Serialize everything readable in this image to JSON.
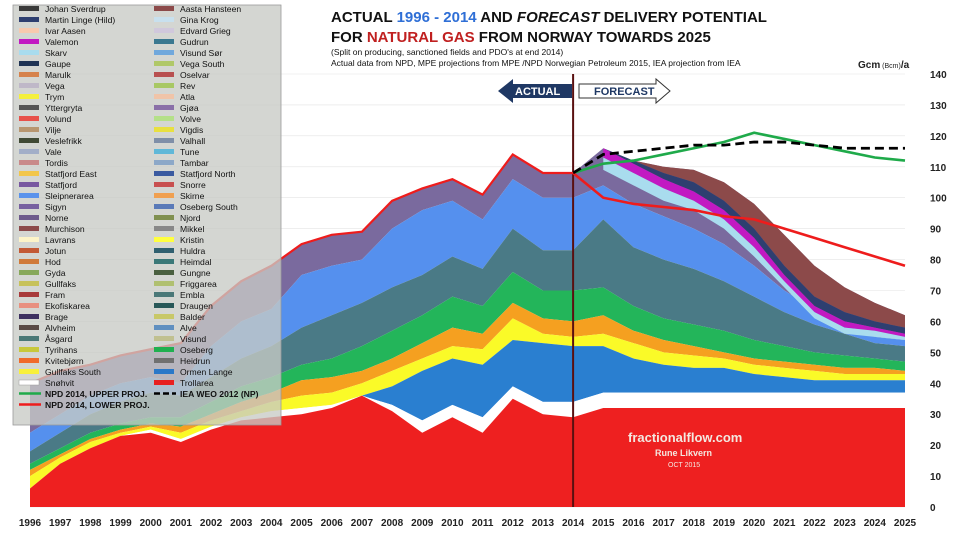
{
  "chart_data": {
    "type": "area",
    "title": {
      "pre1": "ACTUAL ",
      "years": "1996 - 2014",
      "mid1": " AND ",
      "forecast_word": "FORECAST",
      "post1": " DELIVERY POTENTIAL",
      "pre2": "FOR  ",
      "gas": "NATURAL GAS",
      "post2": " FROM NORWAY TOWARDS 2025"
    },
    "subtitle_lines": [
      "(Split on producing, sanctioned fields and PDO's at end 2014)",
      "Actual data from NPD, MPE projections from MPE /NPD Norwegian Petroleum 2015, IEA projection from IEA"
    ],
    "ylabel": {
      "main": "Gcm",
      "small": " (Bcm)",
      "tail": "/a"
    },
    "x": [
      1996,
      1997,
      1998,
      1999,
      2000,
      2001,
      2002,
      2003,
      2004,
      2005,
      2006,
      2007,
      2008,
      2009,
      2010,
      2011,
      2012,
      2013,
      2014,
      2015,
      2016,
      2017,
      2018,
      2019,
      2020,
      2021,
      2022,
      2023,
      2024,
      2025
    ],
    "ylim": [
      0,
      140
    ],
    "yticks": [
      0,
      10,
      20,
      30,
      40,
      50,
      60,
      70,
      80,
      90,
      100,
      110,
      120,
      130,
      140
    ],
    "total_deliveries": [
      40,
      44,
      46,
      49,
      51,
      53,
      65,
      73,
      78,
      85,
      88,
      89,
      99,
      103,
      106,
      101,
      114,
      108,
      108,
      116,
      112,
      110,
      109,
      105,
      98,
      88,
      78,
      71,
      66,
      62
    ],
    "stack_boundaries": {
      "trollarea_top": [
        6,
        14,
        19,
        23,
        24,
        21,
        25,
        28,
        29,
        30,
        32,
        36,
        31,
        24,
        29,
        24,
        35,
        30,
        29,
        32,
        32,
        32,
        32,
        32,
        32,
        32,
        32,
        32,
        32,
        32
      ],
      "white_top": [
        6,
        14,
        19,
        23,
        25,
        22,
        26,
        29,
        31,
        32,
        33,
        36,
        33,
        28,
        33,
        29,
        39,
        34,
        34,
        37,
        37,
        37,
        37,
        37,
        37,
        37,
        37,
        37,
        37,
        37
      ],
      "ormen_top": [
        6,
        14,
        19,
        23,
        25,
        22,
        26,
        29,
        31,
        32,
        33,
        36,
        39,
        44,
        48,
        46,
        54,
        53,
        52,
        52,
        48,
        46,
        45,
        45,
        43,
        42,
        41,
        41,
        41,
        41
      ],
      "yellow_top": [
        10,
        16,
        21,
        24,
        26,
        24,
        28,
        31,
        34,
        36,
        37,
        40,
        44,
        48,
        52,
        51,
        61,
        56,
        55,
        56,
        53,
        50,
        49,
        48,
        46,
        45,
        44,
        43,
        43,
        43
      ],
      "orange_top": [
        12,
        17,
        22,
        25,
        27,
        26,
        30,
        34,
        37,
        41,
        42,
        44,
        48,
        53,
        58,
        56,
        66,
        61,
        60,
        62,
        57,
        54,
        52,
        50,
        48,
        47,
        46,
        45,
        45,
        44
      ],
      "green_top": [
        14,
        19,
        24,
        27,
        29,
        29,
        34,
        39,
        42,
        46,
        48,
        52,
        57,
        62,
        68,
        65,
        76,
        70,
        70,
        71,
        65,
        61,
        59,
        57,
        54,
        52,
        50,
        49,
        48,
        47
      ],
      "teal_top": [
        18,
        24,
        30,
        34,
        37,
        36,
        42,
        48,
        52,
        58,
        62,
        66,
        71,
        75,
        81,
        77,
        90,
        83,
        83,
        93,
        84,
        80,
        77,
        73,
        68,
        63,
        59,
        56,
        53,
        52
      ],
      "blue_top": [
        24,
        30,
        36,
        40,
        42,
        40,
        52,
        60,
        64,
        75,
        78,
        80,
        90,
        96,
        99,
        93,
        106,
        100,
        100,
        104,
        98,
        94,
        90,
        85,
        78,
        70,
        64,
        59,
        55,
        54
      ]
    },
    "series": [
      {
        "name": "NPD 2014, UPPER PROJ.",
        "x": [
          2014,
          2015,
          2016,
          2017,
          2018,
          2019,
          2020,
          2021,
          2022,
          2023,
          2024,
          2025
        ],
        "values": [
          108,
          111,
          112,
          114,
          116,
          118,
          121,
          119,
          117,
          115,
          113,
          112
        ]
      },
      {
        "name": "NPD 2014, LOWER PROJ.",
        "x": [
          2014,
          2015,
          2016,
          2017,
          2018,
          2019,
          2020,
          2021,
          2022,
          2023,
          2024,
          2025
        ],
        "values": [
          108,
          100,
          98,
          97,
          96,
          94,
          93,
          90,
          87,
          84,
          81,
          78
        ]
      },
      {
        "name": "IEA WEO 2012 (NP)",
        "x": [
          2014,
          2015,
          2016,
          2017,
          2018,
          2019,
          2020,
          2021,
          2022,
          2023,
          2024,
          2025
        ],
        "values": [
          108,
          114,
          115,
          116,
          117,
          117,
          118,
          118,
          117,
          116,
          116,
          116
        ]
      }
    ],
    "legend_left": [
      "Johan Sverdrup",
      "Martin Linge (Hild)",
      "Ivar Aasen",
      "Valemon",
      "Skarv",
      "Gaupe",
      "Marulk",
      "Vega",
      "Trym",
      "Yttergryta",
      "Volund",
      "Vilje",
      "Veslefrikk",
      "Vale",
      "Tordis",
      "Statfjord East",
      "Statfjord",
      "Sleipnerarea",
      "Sigyn",
      "Norne",
      "Murchison",
      "Lavrans",
      "Jotun",
      "Hod",
      "Gyda",
      "Gullfaks",
      "Fram",
      "Ekofiskarea",
      "Brage",
      "Alvheim",
      "Åsgard",
      "Tyrihans",
      "Kvitebjørn",
      "Gullfaks South",
      "Snøhvit"
    ],
    "legend_right": [
      "Aasta Hansteen",
      "Gina Krog",
      "Edvard Grieg",
      "Gudrun",
      "Visund Sør",
      "Vega South",
      "Oselvar",
      "Rev",
      "Atla",
      "Gjøa",
      "Volve",
      "Vigdis",
      "Valhall",
      "Tune",
      "Tambar",
      "Statfjord North",
      "Snorre",
      "Skirne",
      "Oseberg South",
      "Njord",
      "Mikkel",
      "Kristin",
      "Huldra",
      "Heimdal",
      "Gungne",
      "Friggarea",
      "Embla",
      "Draugen",
      "Balder",
      "Alve",
      "Visund",
      "Oseberg",
      "Heidrun",
      "Ormen Lange",
      "Trollarea"
    ],
    "legend_colors_left": [
      "#3a3a3a",
      "#2e3f70",
      "#f7c9ae",
      "#c219c2",
      "#a9dcee",
      "#1f3354",
      "#d6824c",
      "#bfb8c8",
      "#f4f03c",
      "#555555",
      "#e8514a",
      "#b89670",
      "#404a35",
      "#a2aec8",
      "#c98a8a",
      "#f2c64a",
      "#7858a0",
      "#5a93ec",
      "#7760a0",
      "#6e5b8d",
      "#8c4a4a",
      "#fdf4c8",
      "#c35a35",
      "#d07a3a",
      "#87a85a",
      "#c7c25a",
      "#a83a3a",
      "#e89080",
      "#3d3060",
      "#5a4a46",
      "#4a7876",
      "#c8c83a",
      "#f06a2a",
      "#f8f03a",
      "#ffffff"
    ],
    "legend_colors_right": [
      "#8c4a4a",
      "#c8e0ee",
      "#d0c8dc",
      "#3a7890",
      "#70a8dc",
      "#b0c868",
      "#b85050",
      "#a8c864",
      "#f0c4a8",
      "#8a70a8",
      "#b4e088",
      "#e8e040",
      "#7f8fa8",
      "#60b8d8",
      "#8ca8c8",
      "#3a5aa0",
      "#c85050",
      "#f0a050",
      "#5a7ab8",
      "#809050",
      "#888888",
      "#ffff40",
      "#306070",
      "#3a7878",
      "#4a6040",
      "#b0c070",
      "#4a7878",
      "#285858",
      "#c8c868",
      "#6090c0",
      "#c0c090",
      "#20b050",
      "#707070",
      "#2a78c8",
      "#e82020"
    ],
    "legend_lines": [
      {
        "name": "NPD 2014, UPPER PROJ.",
        "color": "#1faa4a",
        "style": "solid"
      },
      {
        "name": "IEA WEO 2012 (NP)",
        "color": "#000000",
        "style": "dashed"
      },
      {
        "name": "NPD 2014, LOWER PROJ.",
        "color": "#ee1c1c",
        "style": "solid"
      }
    ],
    "legend_placement": "top-left",
    "annotations": {
      "actual": "ACTUAL",
      "forecast": "FORECAST"
    },
    "watermark": {
      "line1": "fractionalflow.com",
      "line2": "Rune Likvern",
      "line3": "OCT 2015"
    },
    "colors": {
      "trollarea": "#ee2020",
      "ormen_lange": "#2a7fd0",
      "yellow": "#fafa28",
      "orange": "#f5a020",
      "green": "#23b55a",
      "teal": "#4a7a86",
      "blue": "#5590ee",
      "upper": "#1faa4a",
      "lower": "#ee1c1c",
      "iea": "#000000",
      "divider": "#5a1010",
      "years_text": "#2f6fd6",
      "gas_text": "#c02020"
    }
  }
}
